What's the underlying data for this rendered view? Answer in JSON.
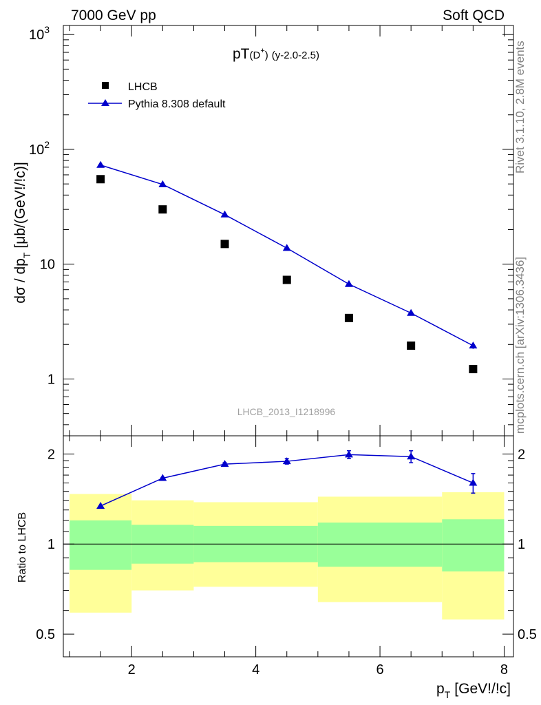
{
  "header": {
    "left": "7000 GeV pp",
    "right": "Soft QCD"
  },
  "side_labels": {
    "rivet": "Rivet 3.1.10,  2.8M events",
    "mcplots": "mcplots.cern.ch [arXiv:1306.3436]"
  },
  "chart_data": [
    {
      "type": "scatter",
      "title": "pT(D⁺) (y-2.0-2.5)",
      "title_main": "pT",
      "title_paren": "(D",
      "title_sup": "+",
      "title_close": ")",
      "title_rest": "(y-2.0-2.5)",
      "ylabel": "dσ / dp",
      "ylabel_sub": "T",
      "ylabel_unit": "[μb/(GeV!/!c)]",
      "yscale": "log",
      "ylim": [
        0.32,
        1200
      ],
      "xlim": [
        0.9,
        8.15
      ],
      "yticks": [
        {
          "value": 1,
          "label": "1"
        },
        {
          "value": 10,
          "label": "10"
        },
        {
          "value": 100,
          "label": "10",
          "sup": "2"
        },
        {
          "value": 1000,
          "label": "10",
          "sup": "3"
        }
      ],
      "watermark": "LHCB_2013_I1218996",
      "legend_position": "top-left",
      "series": [
        {
          "name": "LHCB",
          "marker": "square",
          "color": "#000000",
          "x": [
            1.5,
            2.5,
            3.5,
            4.5,
            5.5,
            6.5,
            7.5
          ],
          "y": [
            55,
            30,
            15,
            7.3,
            3.4,
            1.95,
            1.22
          ]
        },
        {
          "name": "Pythia 8.308 default",
          "marker": "triangle",
          "color": "#0000cc",
          "x": [
            1.5,
            2.5,
            3.5,
            4.5,
            5.5,
            6.5,
            7.5
          ],
          "y": [
            73,
            49.5,
            27,
            13.8,
            6.7,
            3.75,
            1.95
          ],
          "yerr": [
            0,
            0,
            0,
            0,
            0,
            0,
            0.12
          ]
        }
      ]
    },
    {
      "type": "line",
      "ylabel": "Ratio to LHCB",
      "xlabel": "p",
      "xlabel_sub": "T",
      "xlabel_unit": "[GeV!/!c]",
      "xlim": [
        0.9,
        8.15
      ],
      "ylim": [
        0.42,
        2.3
      ],
      "yscale": "log",
      "xticks": [
        2,
        4,
        6,
        8
      ],
      "yticks": [
        {
          "value": 0.5,
          "label": "0.5"
        },
        {
          "value": 1,
          "label": "1"
        },
        {
          "value": 2,
          "label": "2"
        }
      ],
      "bands": [
        {
          "x0": 1,
          "x1": 2,
          "green": [
            0.82,
            1.2
          ],
          "yellow": [
            0.59,
            1.47
          ]
        },
        {
          "x0": 2,
          "x1": 3,
          "green": [
            0.86,
            1.16
          ],
          "yellow": [
            0.7,
            1.4
          ]
        },
        {
          "x0": 3,
          "x1": 5,
          "green": [
            0.87,
            1.15
          ],
          "yellow": [
            0.72,
            1.38
          ]
        },
        {
          "x0": 5,
          "x1": 7,
          "green": [
            0.84,
            1.18
          ],
          "yellow": [
            0.64,
            1.44
          ]
        },
        {
          "x0": 7,
          "x1": 8,
          "green": [
            0.81,
            1.21
          ],
          "yellow": [
            0.56,
            1.49
          ]
        }
      ],
      "band_colors": {
        "green": "#99ff99",
        "yellow": "#ffff99"
      },
      "reference_line": 1,
      "series": [
        {
          "name": "Pythia 8.308 default",
          "color": "#0000cc",
          "x": [
            1.5,
            2.5,
            3.5,
            4.5,
            5.5,
            6.5,
            7.5
          ],
          "y": [
            1.34,
            1.66,
            1.85,
            1.89,
            1.99,
            1.96,
            1.6
          ],
          "yerr": [
            0.0,
            0.01,
            0.02,
            0.04,
            0.06,
            0.09,
            0.12
          ]
        }
      ]
    }
  ]
}
